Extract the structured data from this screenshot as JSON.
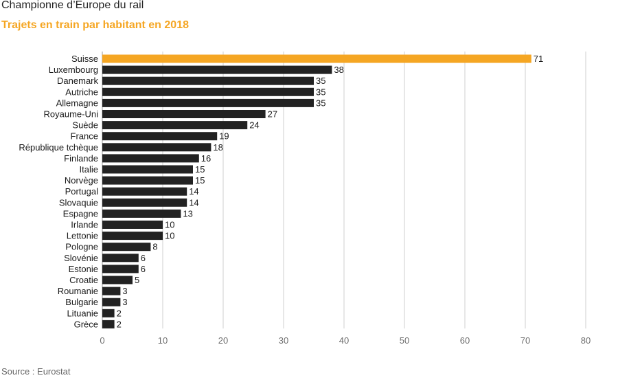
{
  "title": "Championne d’Europe du rail",
  "subtitle": "Trajets en train par habitant en 2018",
  "source": "Source : Eurostat",
  "colors": {
    "highlight": "#f5a623",
    "bar": "#222222",
    "grid": "#cfcfcf",
    "axis": "#9a9a9a",
    "tick": "#6e6e6e"
  },
  "chart_data": {
    "type": "bar",
    "orientation": "horizontal",
    "title": "Trajets en train par habitant en 2018",
    "categories": [
      "Suisse",
      "Luxembourg",
      "Danemark",
      "Autriche",
      "Allemagne",
      "Royaume-Uni",
      "Suède",
      "France",
      "République tchèque",
      "Finlande",
      "Italie",
      "Norvège",
      "Portugal",
      "Slovaquie",
      "Espagne",
      "Irlande",
      "Lettonie",
      "Pologne",
      "Slovénie",
      "Estonie",
      "Croatie",
      "Roumanie",
      "Bulgarie",
      "Lituanie",
      "Grèce"
    ],
    "values": [
      71,
      38,
      35,
      35,
      35,
      27,
      24,
      19,
      18,
      16,
      15,
      15,
      14,
      14,
      13,
      10,
      10,
      8,
      6,
      6,
      5,
      3,
      3,
      2,
      2
    ],
    "highlight": "Suisse",
    "xlim": [
      0,
      80
    ],
    "xticks": [
      0,
      10,
      20,
      30,
      40,
      50,
      60,
      70,
      80
    ],
    "grid": true,
    "data_labels": true
  }
}
